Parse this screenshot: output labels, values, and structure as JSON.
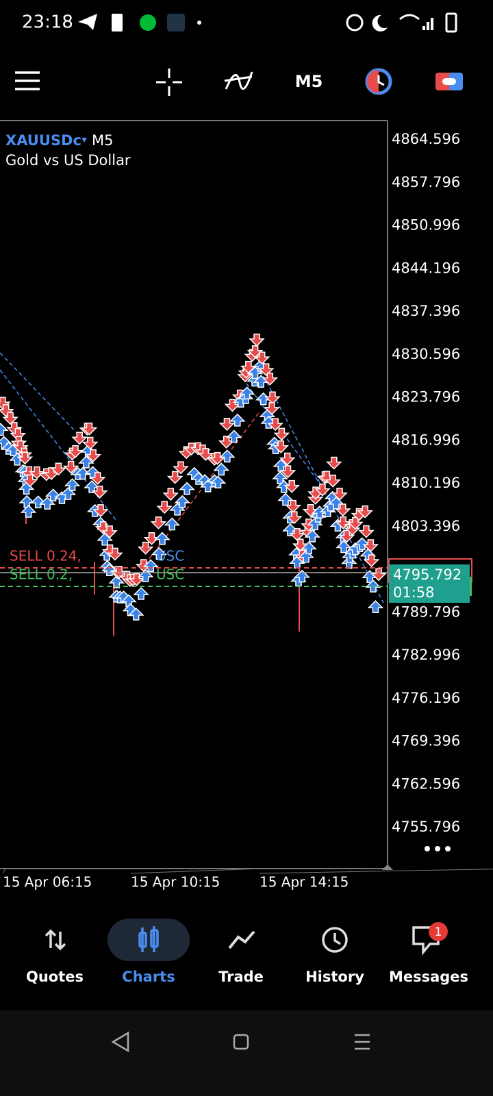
{
  "status_bar": {
    "time": "23:18"
  },
  "toolbar": {
    "timeframe": "M5"
  },
  "chart": {
    "symbol": "XAUUSDc",
    "timeframe": "M5",
    "description": "Gold vs US Dollar",
    "price_labels": [
      "4864.596",
      "4857.796",
      "4850.996",
      "4844.196",
      "4837.396",
      "4830.596",
      "4823.796",
      "4816.996",
      "4810.196",
      "4803.396",
      "4789.796",
      "4782.996",
      "4776.196",
      "4769.396",
      "4762.596",
      "4755.796"
    ],
    "time_labels": [
      "15 Apr 06:15",
      "15 Apr 10:15",
      "15 Apr 14:15"
    ],
    "orders": [
      {
        "label": "SELL 0.24,",
        "currency": "USC"
      },
      {
        "label": "SELL 0.2,",
        "currency": "USC"
      }
    ],
    "current_price": "4795.792",
    "countdown": "01:58"
  },
  "nav": {
    "items": [
      "Quotes",
      "Charts",
      "Trade",
      "History",
      "Messages"
    ],
    "badge": "1"
  }
}
